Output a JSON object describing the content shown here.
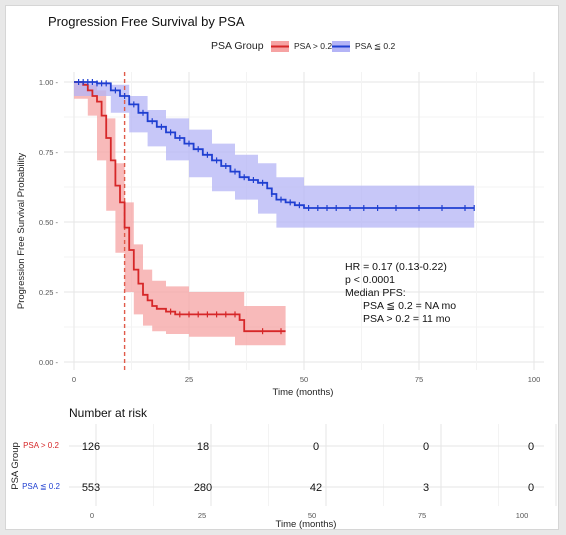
{
  "chart_data": [
    {
      "type": "line",
      "subtype": "kaplan-meier",
      "title": "Progression Free Survival by PSA",
      "legend_title": "PSA Group",
      "legend_position": "top",
      "xlabel": "Time (months)",
      "ylabel": "Progression Free Survival Probability",
      "xlim": [
        0,
        100
      ],
      "ylim": [
        0,
        1
      ],
      "x_ticks": [
        "0",
        "25",
        "50",
        "75",
        "100"
      ],
      "y_ticks": [
        "0.00 -",
        "0.25 -",
        "0.50 -",
        "0.75 -",
        "1.00 -"
      ],
      "grid": true,
      "series": [
        {
          "name": "PSA > 0.2",
          "color": "#d62728",
          "ci_color": "#f6a3a3",
          "points": [
            [
              0,
              1.0
            ],
            [
              2,
              0.99
            ],
            [
              3,
              0.97
            ],
            [
              4,
              0.95
            ],
            [
              5,
              0.93
            ],
            [
              6,
              0.88
            ],
            [
              7,
              0.8
            ],
            [
              8,
              0.72
            ],
            [
              9,
              0.63
            ],
            [
              10,
              0.57
            ],
            [
              11,
              0.48
            ],
            [
              12,
              0.4
            ],
            [
              13,
              0.33
            ],
            [
              14,
              0.28
            ],
            [
              15,
              0.24
            ],
            [
              16,
              0.22
            ],
            [
              17,
              0.2
            ],
            [
              18,
              0.19
            ],
            [
              20,
              0.18
            ],
            [
              22,
              0.17
            ],
            [
              30,
              0.17
            ],
            [
              36,
              0.15
            ],
            [
              37,
              0.11
            ],
            [
              46,
              0.11
            ]
          ],
          "ci_upper": [
            [
              0,
              1.0
            ],
            [
              3,
              0.99
            ],
            [
              5,
              0.97
            ],
            [
              7,
              0.87
            ],
            [
              9,
              0.71
            ],
            [
              11,
              0.57
            ],
            [
              13,
              0.42
            ],
            [
              15,
              0.33
            ],
            [
              17,
              0.29
            ],
            [
              20,
              0.27
            ],
            [
              25,
              0.25
            ],
            [
              35,
              0.25
            ],
            [
              37,
              0.2
            ],
            [
              46,
              0.2
            ]
          ],
          "ci_lower": [
            [
              0,
              1.0
            ],
            [
              3,
              0.94
            ],
            [
              5,
              0.88
            ],
            [
              7,
              0.72
            ],
            [
              9,
              0.54
            ],
            [
              11,
              0.39
            ],
            [
              13,
              0.25
            ],
            [
              15,
              0.17
            ],
            [
              17,
              0.13
            ],
            [
              20,
              0.11
            ],
            [
              25,
              0.1
            ],
            [
              35,
              0.09
            ],
            [
              37,
              0.06
            ],
            [
              46,
              0.06
            ]
          ],
          "censor_x": [
            21,
            23,
            25,
            27,
            29,
            31,
            33,
            35,
            41,
            45
          ]
        },
        {
          "name": "PSA ≦ 0.2",
          "color": "#1f3fd1",
          "ci_color": "#b4b4f6",
          "points": [
            [
              0,
              1.0
            ],
            [
              5,
              0.995
            ],
            [
              8,
              0.97
            ],
            [
              10,
              0.95
            ],
            [
              12,
              0.92
            ],
            [
              14,
              0.89
            ],
            [
              16,
              0.86
            ],
            [
              18,
              0.84
            ],
            [
              20,
              0.82
            ],
            [
              22,
              0.8
            ],
            [
              24,
              0.78
            ],
            [
              26,
              0.76
            ],
            [
              28,
              0.74
            ],
            [
              30,
              0.72
            ],
            [
              32,
              0.7
            ],
            [
              34,
              0.68
            ],
            [
              36,
              0.66
            ],
            [
              38,
              0.65
            ],
            [
              40,
              0.64
            ],
            [
              42,
              0.62
            ],
            [
              43,
              0.6
            ],
            [
              44,
              0.58
            ],
            [
              46,
              0.57
            ],
            [
              48,
              0.56
            ],
            [
              50,
              0.55
            ],
            [
              60,
              0.55
            ],
            [
              70,
              0.55
            ],
            [
              80,
              0.55
            ],
            [
              87,
              0.55
            ]
          ],
          "ci_upper": [
            [
              0,
              1.0
            ],
            [
              8,
              0.99
            ],
            [
              12,
              0.95
            ],
            [
              16,
              0.9
            ],
            [
              20,
              0.87
            ],
            [
              25,
              0.83
            ],
            [
              30,
              0.78
            ],
            [
              35,
              0.74
            ],
            [
              40,
              0.71
            ],
            [
              44,
              0.66
            ],
            [
              50,
              0.63
            ],
            [
              87,
              0.63
            ]
          ],
          "ci_lower": [
            [
              0,
              1.0
            ],
            [
              8,
              0.95
            ],
            [
              12,
              0.89
            ],
            [
              16,
              0.82
            ],
            [
              20,
              0.77
            ],
            [
              25,
              0.72
            ],
            [
              30,
              0.66
            ],
            [
              35,
              0.61
            ],
            [
              40,
              0.58
            ],
            [
              44,
              0.53
            ],
            [
              50,
              0.48
            ],
            [
              87,
              0.48
            ]
          ],
          "censor_x": [
            1,
            2,
            3,
            4,
            5,
            6,
            7,
            9,
            11,
            13,
            15,
            17,
            19,
            21,
            23,
            25,
            27,
            29,
            31,
            33,
            35,
            37,
            39,
            41,
            43,
            45,
            47,
            49,
            51,
            53,
            55,
            57,
            60,
            63,
            66,
            70,
            75,
            80,
            85,
            87
          ]
        }
      ],
      "reference_line": {
        "x": 11,
        "color": "#e05a4a",
        "style": "dashed"
      },
      "annotations": [
        "HR = 0.17 (0.13-0.22)",
        "p < 0.0001",
        "Median PFS:",
        "PSA ≦ 0.2 = NA mo",
        "PSA > 0.2 = 11 mo"
      ]
    },
    {
      "type": "table",
      "title": "Number at risk",
      "ylabel": "PSA Group",
      "xlabel": "Time (months)",
      "x_ticks": [
        "0",
        "25",
        "50",
        "75",
        "100"
      ],
      "rows": [
        {
          "label": "PSA > 0.2",
          "color": "#d62728",
          "values": [
            "126",
            "18",
            "0",
            "0",
            "0"
          ]
        },
        {
          "label": "PSA ≦ 0.2",
          "color": "#1f3fd1",
          "values": [
            "553",
            "280",
            "42",
            "3",
            "0"
          ]
        }
      ]
    }
  ]
}
